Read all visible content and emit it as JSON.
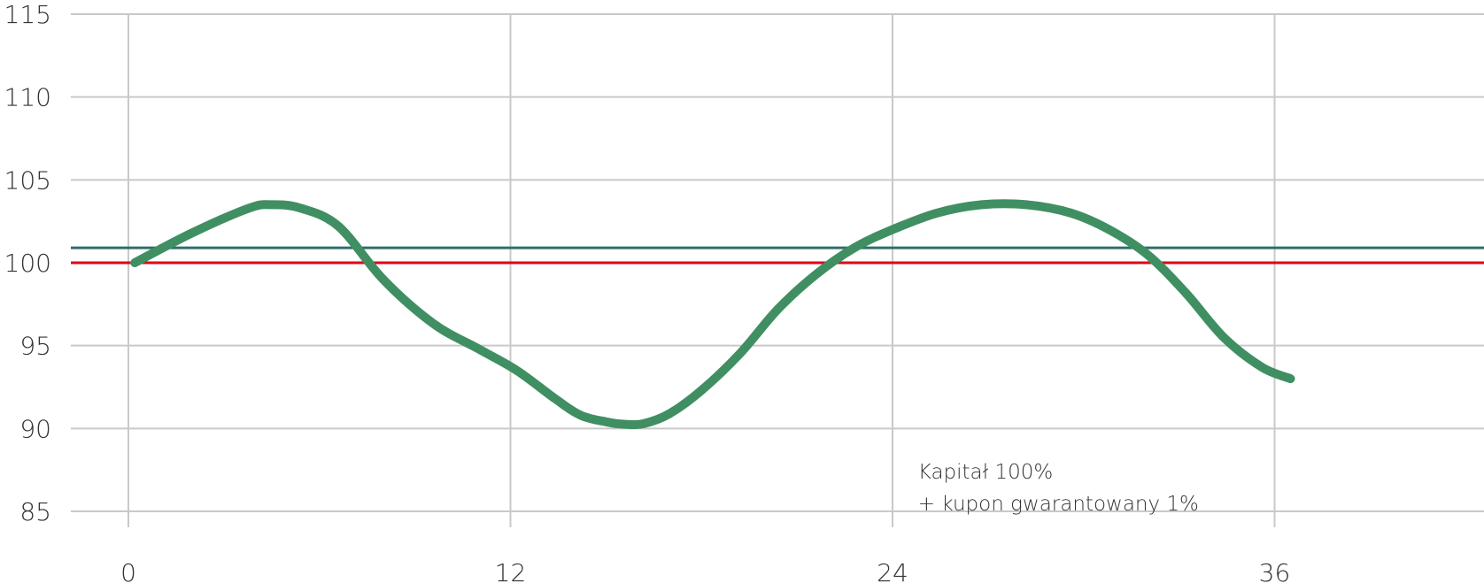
{
  "chart_data": {
    "type": "line",
    "x_ticks": [
      0,
      12,
      24,
      36
    ],
    "y_ticks": [
      85,
      90,
      95,
      100,
      105,
      110,
      115
    ],
    "xlim": [
      0,
      42.5
    ],
    "ylim": [
      85,
      115
    ],
    "grid": true,
    "reference_lines": [
      {
        "y": 100,
        "color": "#e0001a"
      },
      {
        "y": 100.9,
        "color": "#2e6e6a"
      }
    ],
    "series": [
      {
        "color": "#3f8f62",
        "x": [
          0.2,
          2,
          3.8,
          4.5,
          5.4,
          6.6,
          8,
          9.6,
          11,
          12.2,
          13.4,
          14.2,
          15,
          15.6,
          16.2,
          17,
          18,
          19.2,
          20.4,
          21.6,
          22.8,
          24,
          25.4,
          26.8,
          28.2,
          29.6,
          30.8,
          32,
          33.2,
          34.4,
          35.6,
          36.5
        ],
        "y": [
          100,
          101.8,
          103.3,
          103.5,
          103.3,
          102.2,
          99,
          96.3,
          94.8,
          93.5,
          91.8,
          90.8,
          90.4,
          90.25,
          90.3,
          90.9,
          92.3,
          94.5,
          97.2,
          99.3,
          100.9,
          102,
          103,
          103.5,
          103.5,
          103,
          102,
          100.5,
          98.2,
          95.5,
          93.7,
          93
        ]
      }
    ],
    "annotations": [
      {
        "x": 24.8,
        "y": 87.3,
        "lines": [
          "Kapitał 100%",
          "+ kupon gwarantowany 1%"
        ]
      }
    ]
  }
}
